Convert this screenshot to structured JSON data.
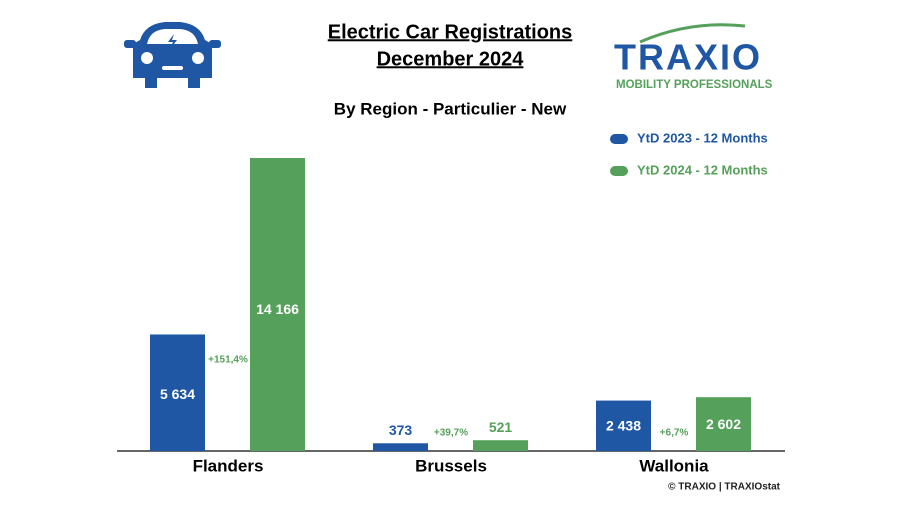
{
  "chart_data": {
    "type": "bar",
    "title": [
      "Electric Car Registrations",
      "December 2024"
    ],
    "subtitle": "By Region - Particulier - New",
    "logo": {
      "name": "TRAXIO",
      "tagline": "MOBILITY PROFESSIONALS"
    },
    "source": "© TRAXIO | TRAXIOstat",
    "categories": [
      "Flanders",
      "Brussels",
      "Wallonia"
    ],
    "series": [
      {
        "name": "YtD 2023 - 12 Months",
        "color": "#1f57a5",
        "values": [
          5634,
          373,
          2438
        ],
        "value_labels": [
          "5 634",
          "373",
          "2 438"
        ]
      },
      {
        "name": "YtD 2024 - 12 Months",
        "color": "#55a05a",
        "values": [
          14166,
          521,
          2602
        ],
        "value_labels": [
          "14 166",
          "521",
          "2 602"
        ]
      }
    ],
    "annotations": [
      "+151,4%",
      "+39,7%",
      "+6,7%"
    ],
    "annotation_color": "#55a05a"
  }
}
